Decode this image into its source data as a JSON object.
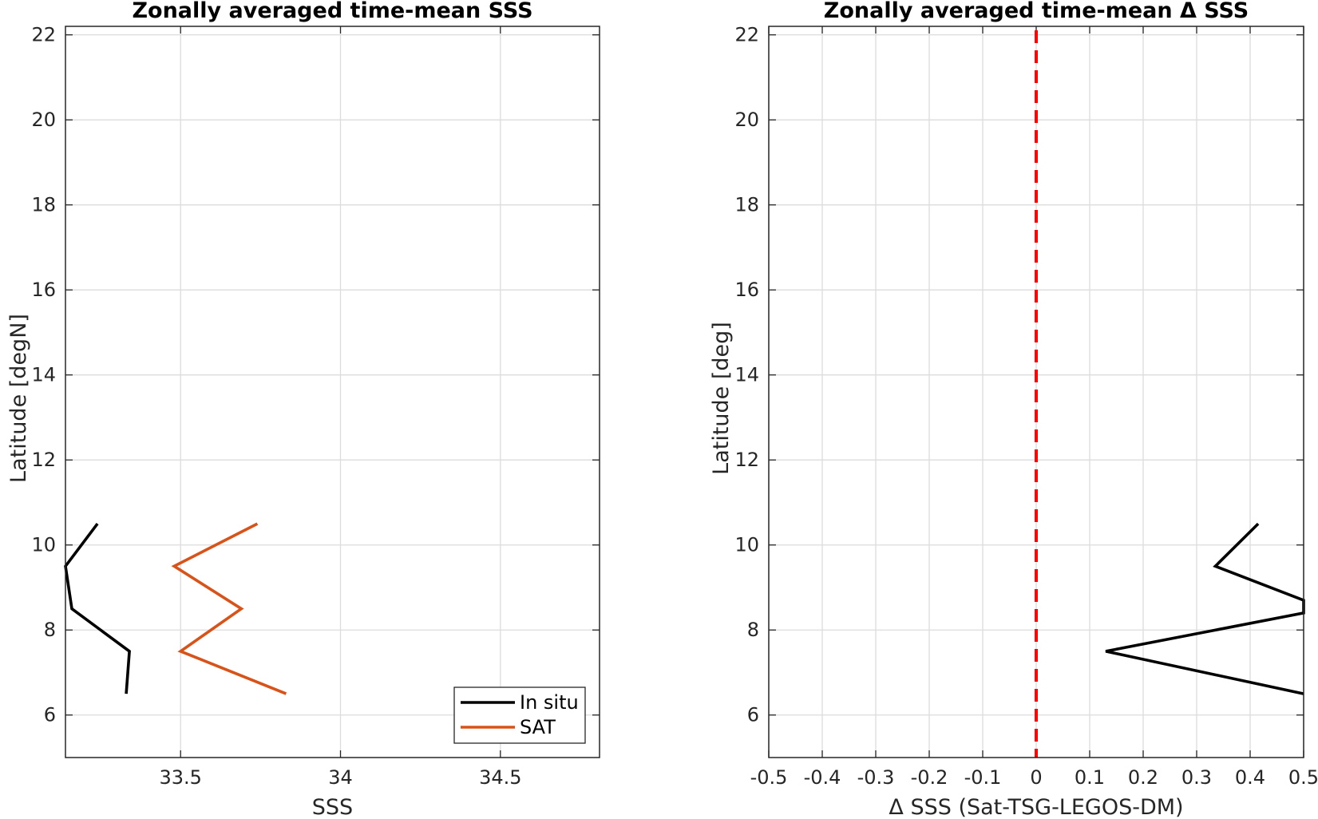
{
  "chart_data": [
    {
      "type": "line",
      "title": "Zonally averaged time-mean SSS",
      "xlabel": "SSS",
      "ylabel": "Latitude [degN]",
      "xlim": [
        33.14,
        34.81
      ],
      "ylim": [
        5,
        22.2
      ],
      "xticks": [
        33.5,
        34,
        34.5
      ],
      "xtick_labels": [
        "33.5",
        "34",
        "34.5"
      ],
      "yticks": [
        6,
        8,
        10,
        12,
        14,
        16,
        18,
        20,
        22
      ],
      "ytick_labels": [
        "6",
        "8",
        "10",
        "12",
        "14",
        "16",
        "18",
        "20",
        "22"
      ],
      "grid": true,
      "legend_position": "bottom-right",
      "series": [
        {
          "name": "In situ",
          "color": "#000000",
          "x": [
            33.24,
            33.14,
            33.16,
            33.34,
            33.33
          ],
          "y": [
            10.5,
            9.5,
            8.5,
            7.5,
            6.5
          ]
        },
        {
          "name": "SAT",
          "color": "#D95319",
          "x": [
            33.74,
            33.48,
            33.69,
            33.5,
            33.83
          ],
          "y": [
            10.5,
            9.5,
            8.5,
            7.5,
            6.5
          ]
        }
      ]
    },
    {
      "type": "line",
      "title": "Zonally averaged time-mean Δ SSS",
      "xlabel": "Δ SSS (Sat-TSG-LEGOS-DM)",
      "ylabel": "Latitude [deg]",
      "xlim": [
        -0.5,
        0.5
      ],
      "ylim": [
        5,
        22.2
      ],
      "xticks": [
        -0.5,
        -0.4,
        -0.3,
        -0.2,
        -0.1,
        0,
        0.1,
        0.2,
        0.3,
        0.4,
        0.5
      ],
      "xtick_labels": [
        "-0.5",
        "-0.4",
        "-0.3",
        "-0.2",
        "-0.1",
        "0",
        "0.1",
        "0.2",
        "0.3",
        "0.4",
        "0.5"
      ],
      "yticks": [
        6,
        8,
        10,
        12,
        14,
        16,
        18,
        20,
        22
      ],
      "ytick_labels": [
        "6",
        "8",
        "10",
        "12",
        "14",
        "16",
        "18",
        "20",
        "22"
      ],
      "grid": true,
      "reference_line": {
        "x": 0,
        "color": "#FF0000",
        "style": "dashed"
      },
      "series": [
        {
          "color": "#000000",
          "x": [
            0.415,
            0.335,
            0.5,
            0.5,
            0.13,
            0.5
          ],
          "y": [
            10.5,
            9.5,
            8.7,
            8.4,
            7.5,
            6.5
          ]
        }
      ]
    }
  ]
}
